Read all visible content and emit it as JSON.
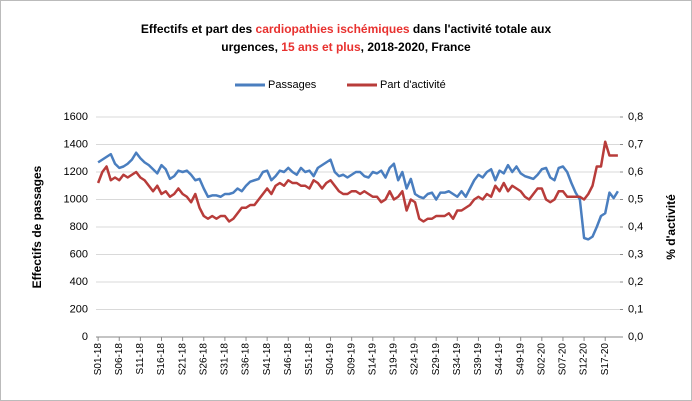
{
  "chart_data": {
    "type": "line",
    "title_lines": [
      [
        {
          "text": "Effectifs et part des ",
          "color": "#000000"
        },
        {
          "text": "cardiopathies ischémiques",
          "color": "#e8312f"
        },
        {
          "text": " dans l'activité totale aux",
          "color": "#000000"
        }
      ],
      [
        {
          "text": "urgences, ",
          "color": "#000000"
        },
        {
          "text": "15 ans et plus",
          "color": "#e8312f"
        },
        {
          "text": ", 2018-2020, France",
          "color": "#000000"
        }
      ]
    ],
    "ylabel": "Effectifs de passages",
    "y2label": "% d'activité",
    "categories": [
      "S01-18",
      null,
      null,
      null,
      null,
      "S06-18",
      null,
      null,
      null,
      null,
      "S11-18",
      null,
      null,
      null,
      null,
      "S16-18",
      null,
      null,
      null,
      null,
      "S21-18",
      null,
      null,
      null,
      null,
      "S26-18",
      null,
      null,
      null,
      null,
      "S31-18",
      null,
      null,
      null,
      null,
      "S36-18",
      null,
      null,
      null,
      null,
      "S41-18",
      null,
      null,
      null,
      null,
      "S46-18",
      null,
      null,
      null,
      null,
      "S51-18",
      null,
      null,
      null,
      null,
      "S04-19",
      null,
      null,
      null,
      null,
      "S09-19",
      null,
      null,
      null,
      null,
      "S14-19",
      null,
      null,
      null,
      null,
      "S19-19",
      null,
      null,
      null,
      null,
      "S24-19",
      null,
      null,
      null,
      null,
      "S29-19",
      null,
      null,
      null,
      null,
      "S34-19",
      null,
      null,
      null,
      null,
      "S39-19",
      null,
      null,
      null,
      null,
      "S44-19",
      null,
      null,
      null,
      null,
      "S49-19",
      null,
      null,
      null,
      null,
      "S02-20",
      null,
      null,
      null,
      null,
      "S07-20",
      null,
      null,
      null,
      null,
      "S12-20",
      null,
      null,
      null,
      null,
      "S17-20",
      null,
      null,
      null
    ],
    "series": [
      {
        "name": "Passages",
        "color": "#4a7ebf",
        "axis": "y",
        "values": [
          1270,
          1290,
          1310,
          1330,
          1260,
          1230,
          1240,
          1260,
          1290,
          1340,
          1300,
          1270,
          1250,
          1220,
          1190,
          1250,
          1220,
          1150,
          1170,
          1210,
          1200,
          1210,
          1180,
          1140,
          1150,
          1080,
          1020,
          1030,
          1030,
          1020,
          1040,
          1040,
          1050,
          1080,
          1060,
          1100,
          1130,
          1140,
          1150,
          1200,
          1210,
          1140,
          1170,
          1210,
          1200,
          1230,
          1200,
          1180,
          1230,
          1200,
          1210,
          1170,
          1230,
          1250,
          1270,
          1290,
          1200,
          1170,
          1180,
          1160,
          1180,
          1200,
          1200,
          1170,
          1160,
          1200,
          1190,
          1210,
          1160,
          1230,
          1260,
          1140,
          1200,
          1080,
          1150,
          1040,
          1020,
          1010,
          1040,
          1050,
          1000,
          1050,
          1050,
          1060,
          1040,
          1020,
          1060,
          1020,
          1080,
          1140,
          1180,
          1160,
          1200,
          1220,
          1140,
          1210,
          1190,
          1250,
          1200,
          1240,
          1190,
          1170,
          1160,
          1150,
          1180,
          1220,
          1230,
          1160,
          1140,
          1230,
          1240,
          1200,
          1120,
          1050,
          1000,
          720,
          710,
          730,
          800,
          880,
          900,
          1050,
          1010,
          1060
        ]
      },
      {
        "name": "Part d'activité",
        "color": "#b83c3a",
        "axis": "y2",
        "values": [
          0.56,
          0.6,
          0.62,
          0.57,
          0.58,
          0.57,
          0.59,
          0.58,
          0.59,
          0.6,
          0.58,
          0.57,
          0.55,
          0.53,
          0.55,
          0.52,
          0.53,
          0.51,
          0.52,
          0.54,
          0.52,
          0.51,
          0.49,
          0.52,
          0.47,
          0.44,
          0.43,
          0.44,
          0.43,
          0.44,
          0.44,
          0.42,
          0.43,
          0.45,
          0.47,
          0.47,
          0.48,
          0.48,
          0.5,
          0.52,
          0.54,
          0.52,
          0.55,
          0.56,
          0.55,
          0.57,
          0.56,
          0.56,
          0.55,
          0.55,
          0.54,
          0.57,
          0.56,
          0.54,
          0.56,
          0.57,
          0.55,
          0.53,
          0.52,
          0.52,
          0.53,
          0.53,
          0.52,
          0.53,
          0.52,
          0.51,
          0.51,
          0.49,
          0.5,
          0.53,
          0.5,
          0.51,
          0.53,
          0.46,
          0.5,
          0.49,
          0.43,
          0.42,
          0.43,
          0.43,
          0.44,
          0.44,
          0.44,
          0.45,
          0.43,
          0.46,
          0.46,
          0.47,
          0.48,
          0.5,
          0.51,
          0.5,
          0.52,
          0.51,
          0.55,
          0.53,
          0.56,
          0.53,
          0.55,
          0.54,
          0.53,
          0.51,
          0.5,
          0.52,
          0.54,
          0.54,
          0.5,
          0.49,
          0.5,
          0.53,
          0.53,
          0.51,
          0.51,
          0.51,
          0.51,
          0.5,
          0.52,
          0.55,
          0.62,
          0.62,
          0.71,
          0.66,
          0.66,
          0.66
        ]
      }
    ],
    "ylim": [
      0,
      1600
    ],
    "yticks": [
      0,
      200,
      400,
      600,
      800,
      1000,
      1200,
      1400,
      1600
    ],
    "y2lim": [
      0,
      0.8
    ],
    "y2ticks": [
      {
        "value": 0,
        "label": "0,0"
      },
      {
        "value": 0.1,
        "label": "0,1"
      },
      {
        "value": 0.2,
        "label": "0,2"
      },
      {
        "value": 0.3,
        "label": "0,3"
      },
      {
        "value": 0.4,
        "label": "0,4"
      },
      {
        "value": 0.5,
        "label": "0,5"
      },
      {
        "value": 0.6,
        "label": "0,6"
      },
      {
        "value": 0.7,
        "label": "0,7"
      },
      {
        "value": 0.8,
        "label": "0,8"
      }
    ],
    "grid": true
  }
}
